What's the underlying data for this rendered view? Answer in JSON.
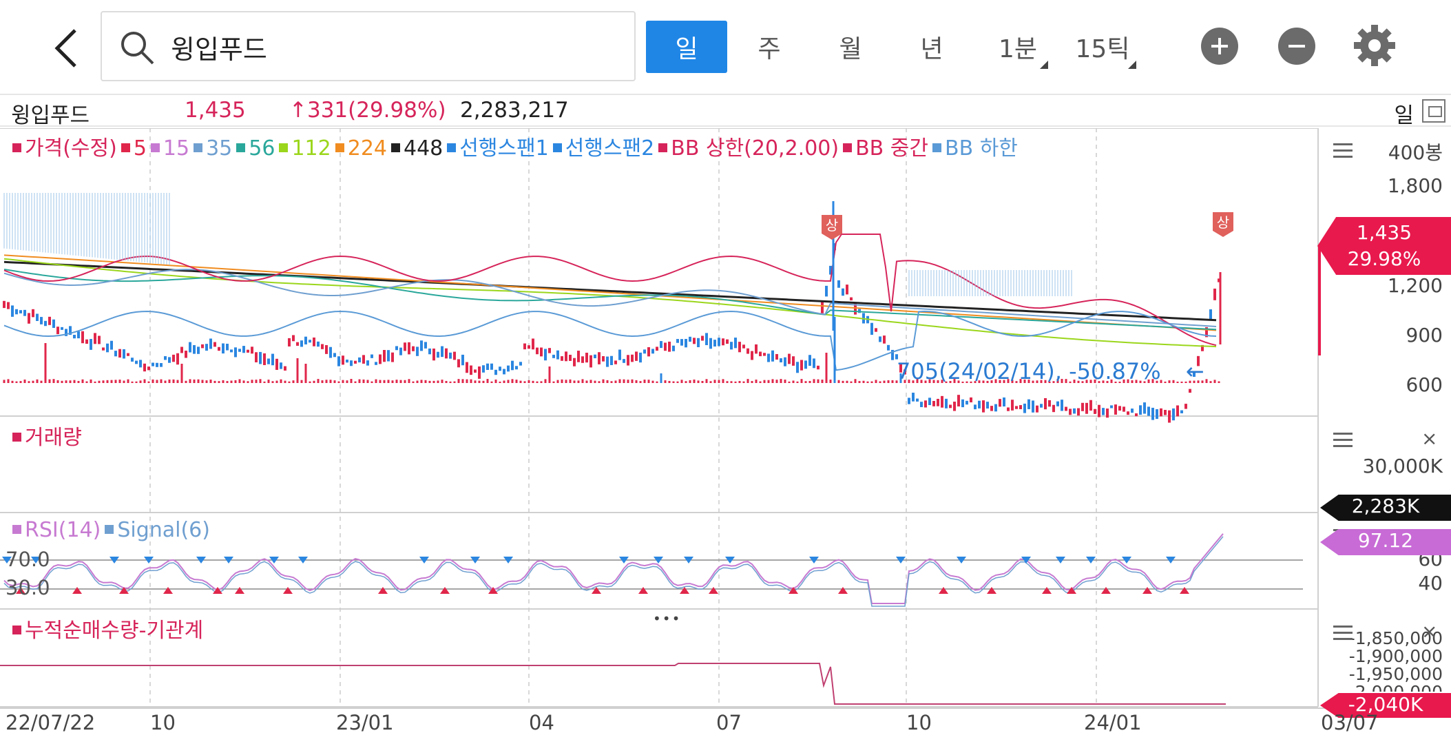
{
  "header": {
    "search_value": "윙입푸드",
    "period_tabs": [
      "일",
      "주",
      "월",
      "년",
      "1분",
      "15틱"
    ],
    "active_tab": "일",
    "icons": {
      "back": "chevron-left-icon",
      "search": "search-icon",
      "zoom_in": "plus-circle-icon",
      "zoom_out": "minus-circle-icon",
      "settings": "gear-icon"
    }
  },
  "stock": {
    "name": "윙입푸드",
    "price": "1,435",
    "change": "↑331(29.98%)",
    "volume": "2,283,217",
    "period": "일"
  },
  "price_panel": {
    "legend": [
      {
        "label": "가격(수정)",
        "color": "#d6245a"
      },
      {
        "label": "5",
        "color": "#e0264a"
      },
      {
        "label": "15",
        "color": "#c77ad1"
      },
      {
        "label": "35",
        "color": "#6f9fd0"
      },
      {
        "label": "56",
        "color": "#2aa79b"
      },
      {
        "label": "112",
        "color": "#9bd61c"
      },
      {
        "label": "224",
        "color": "#f08c20"
      },
      {
        "label": "448",
        "color": "#222222"
      },
      {
        "label": "선행스팬1",
        "color": "#2b86e0"
      },
      {
        "label": "선행스팬2",
        "color": "#2b86e0"
      },
      {
        "label": "BB 상한(20,2.00)",
        "color": "#d6245a"
      },
      {
        "label": "BB 중간",
        "color": "#d6245a"
      },
      {
        "label": "BB 하한",
        "color": "#5a9ad6"
      }
    ],
    "y_labels": [
      "400봉",
      "1,800",
      "1,200",
      "900",
      "600"
    ],
    "price_badge": {
      "price": "1,435",
      "pct": "29.98%",
      "color": "#e8194d"
    },
    "upper_limit_mark": "상",
    "low_annotation": "705(24/02/14), -50.87%",
    "low_arrow": "←"
  },
  "volume_panel": {
    "title": "거래량",
    "y_label": "30,000K",
    "badge": "2,283K",
    "close": "×"
  },
  "rsi_panel": {
    "legend": [
      {
        "label": "RSI(14)",
        "color": "#c77ad1"
      },
      {
        "label": "Signal(6)",
        "color": "#6f9fd0"
      }
    ],
    "levels": [
      "70.0",
      "30.0"
    ],
    "y_labels": [
      "60",
      "40"
    ],
    "badge": "97.12",
    "dots": "•••"
  },
  "inst_panel": {
    "title": "누적순매수량-기관계",
    "y_labels": [
      "-1,850,000",
      "-1,900,000",
      "-1,950,000",
      "-2,000,000"
    ],
    "badge": "-2,040K"
  },
  "x_axis": [
    "22/07/22",
    "10",
    "23/01",
    "04",
    "07",
    "10",
    "24/01",
    "03/07"
  ]
}
